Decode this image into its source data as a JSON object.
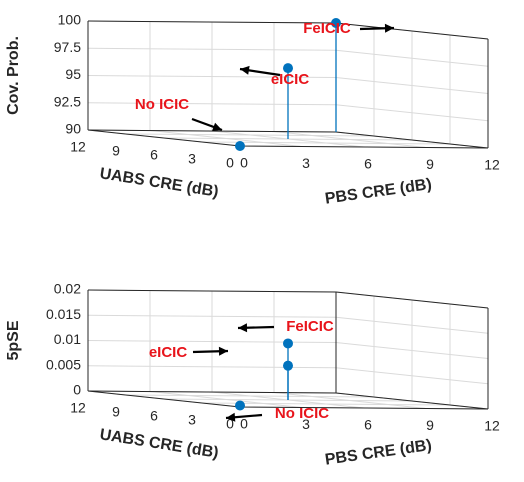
{
  "chart_data": [
    {
      "type": "scatter",
      "subtype": "stem3",
      "zlabel": "Cov. Prob.",
      "xlabel": "PBS CRE (dB)",
      "ylabel": "UABS CRE (dB)",
      "xlim": [
        0,
        12
      ],
      "ylim": [
        0,
        12
      ],
      "zlim": [
        90,
        100
      ],
      "xticks": [
        "0",
        "3",
        "6",
        "9",
        "12"
      ],
      "yticks": [
        "0",
        "3",
        "6",
        "9",
        "12"
      ],
      "zticks": [
        "90",
        "92.5",
        "95",
        "97.5",
        "100"
      ],
      "grid": true,
      "points": [
        {
          "x": 0,
          "y": 0,
          "z": 90,
          "label": "No ICIC"
        },
        {
          "x": 6,
          "y": 6,
          "z": 96.5,
          "label": "eICIC"
        },
        {
          "x": 12,
          "y": 12,
          "z": 100,
          "label": "FeICIC"
        }
      ],
      "color": "#0072bd",
      "annotation_color": "#e8141b"
    },
    {
      "type": "scatter",
      "subtype": "stem3",
      "zlabel": "5pSE",
      "xlabel": "PBS CRE (dB)",
      "ylabel": "UABS CRE (dB)",
      "xlim": [
        0,
        12
      ],
      "ylim": [
        0,
        12
      ],
      "zlim": [
        0,
        0.02
      ],
      "xticks": [
        "0",
        "3",
        "6",
        "9",
        "12"
      ],
      "yticks": [
        "0",
        "3",
        "6",
        "9",
        "12"
      ],
      "zticks": [
        "0",
        "0.005",
        "0.01",
        "0.015",
        "0.02"
      ],
      "grid": true,
      "points": [
        {
          "x": 0,
          "y": 0,
          "z": 0.0003,
          "label": "No ICIC"
        },
        {
          "x": 6,
          "y": 6,
          "z": 0.0068,
          "label": "eICIC"
        },
        {
          "x": 6,
          "y": 6,
          "z": 0.0112,
          "label": "FeICIC"
        }
      ],
      "color": "#0072bd",
      "annotation_color": "#e8141b"
    }
  ]
}
